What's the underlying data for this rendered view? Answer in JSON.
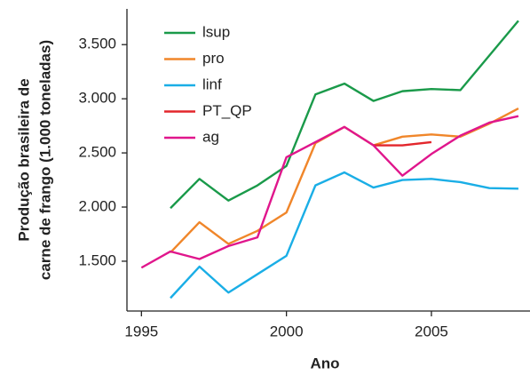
{
  "chart_data": {
    "type": "line",
    "x_label": "Ano",
    "y_label": [
      "Produção brasileira de",
      "carne de frango (1.000 toneladas)"
    ],
    "x": [
      1995,
      1996,
      1997,
      1998,
      1999,
      2000,
      2001,
      2002,
      2003,
      2004,
      2005,
      2006,
      2007,
      2008
    ],
    "series": [
      {
        "name": "lsup",
        "color": "#1a9a4a",
        "values": [
          null,
          1990,
          2260,
          2060,
          2200,
          2380,
          3040,
          3140,
          2980,
          3070,
          3090,
          3080,
          3400,
          3720
        ]
      },
      {
        "name": "pro",
        "color": "#f0862a",
        "values": [
          null,
          1580,
          1860,
          1660,
          1780,
          1950,
          2590,
          2740,
          2570,
          2650,
          2670,
          2650,
          2770,
          2910
        ]
      },
      {
        "name": "linf",
        "color": "#1aaee6",
        "values": [
          null,
          1160,
          1450,
          1210,
          1380,
          1550,
          2200,
          2320,
          2180,
          2250,
          2260,
          2230,
          2175,
          2170
        ]
      },
      {
        "name": "PT_QP",
        "color": "#e3262c",
        "values": [
          null,
          null,
          null,
          null,
          null,
          null,
          null,
          null,
          2570,
          2570,
          2600,
          null,
          null,
          null
        ]
      },
      {
        "name": "ag",
        "color": "#e0168c",
        "values": [
          1440,
          1590,
          1520,
          1640,
          1720,
          2460,
          2600,
          2740,
          2570,
          2290,
          2490,
          2660,
          2780,
          2840
        ]
      }
    ],
    "xlim": [
      1994.5,
      2008.4
    ],
    "ylim": [
      1040,
      3830
    ],
    "xticks": [
      1995,
      2000,
      2005
    ],
    "yticks": [
      {
        "value": 1500,
        "label": "1.500"
      },
      {
        "value": 2000,
        "label": "2.000"
      },
      {
        "value": 2500,
        "label": "2.500"
      },
      {
        "value": 3000,
        "label": "3.000"
      },
      {
        "value": 3500,
        "label": "3.500"
      }
    ],
    "grid": false,
    "legend": "upper left"
  }
}
